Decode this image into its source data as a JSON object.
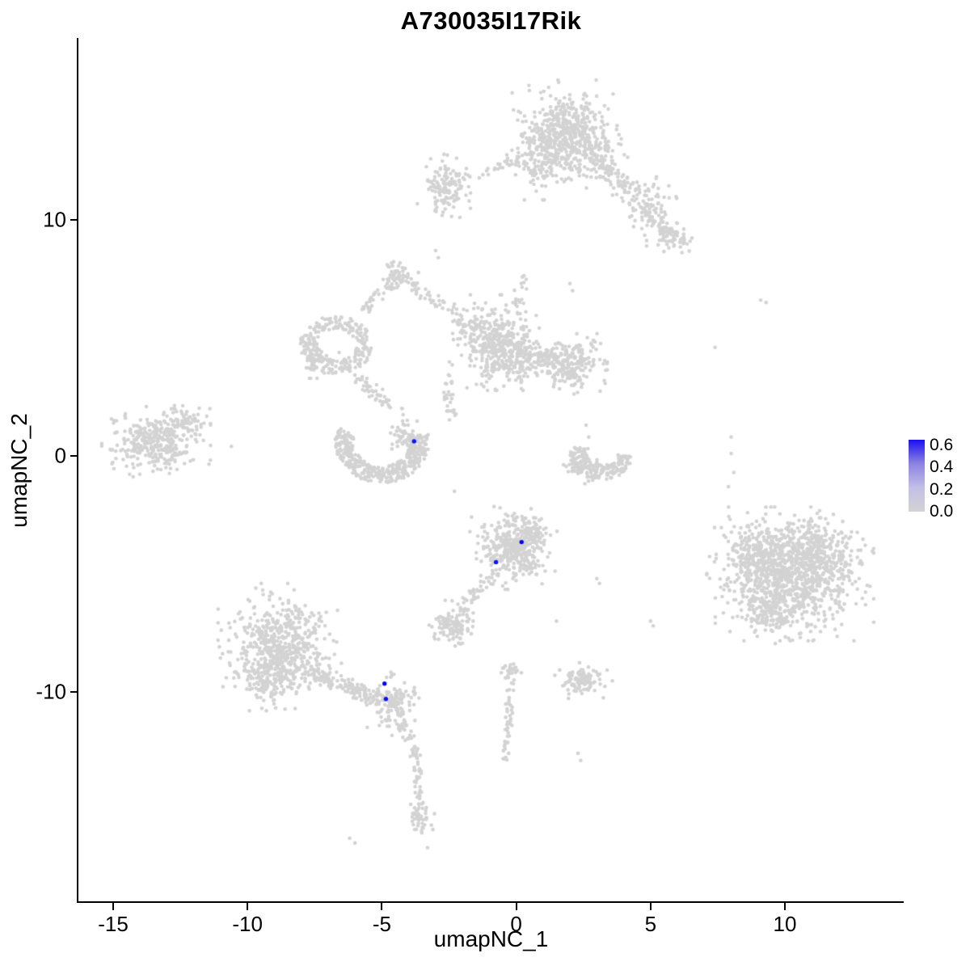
{
  "figure": {
    "title": "A730035I17Rik",
    "xlabel": "umapNC_1",
    "ylabel": "umapNC_2"
  },
  "chart_data": {
    "type": "scatter",
    "title": "A730035I17Rik",
    "xlabel": "umapNC_1",
    "ylabel": "umapNC_2",
    "xlim": [
      -16.3,
      14.4
    ],
    "ylim": [
      -18.9,
      17.7
    ],
    "x_ticks": [
      -15,
      -10,
      -5,
      0,
      5,
      10
    ],
    "y_ticks": [
      -10,
      0,
      10
    ],
    "grid": false,
    "axis_color": "#000000",
    "point_color": "#d3d3d3",
    "highlight_low_color": "#d3d3d3",
    "highlight_high_color": "#0000ff",
    "legend": {
      "position": "right",
      "labels": [
        "0.6",
        "0.4",
        "0.2",
        "0.0"
      ],
      "values": [
        0.6,
        0.4,
        0.2,
        0.0
      ],
      "max": 0.65,
      "gradient_stops": [
        "#1b11ef",
        "#8c83e2",
        "#c3bfe7",
        "#d3d3d3"
      ]
    },
    "clusters": [
      {
        "type": "gauss",
        "cx": 1.8,
        "cy": 13.9,
        "sx": 0.75,
        "sy": 0.75,
        "n": 420
      },
      {
        "type": "gauss",
        "cx": 1.0,
        "cy": 12.6,
        "sx": 0.5,
        "sy": 0.65,
        "n": 170
      },
      {
        "type": "gauss",
        "cx": 2.8,
        "cy": 12.7,
        "sx": 0.5,
        "sy": 0.5,
        "n": 120
      },
      {
        "type": "trail",
        "x1": 2.9,
        "y1": 12.4,
        "x2": 4.3,
        "y2": 11.3,
        "w": 0.3,
        "n": 60
      },
      {
        "type": "gauss",
        "cx": 4.8,
        "cy": 10.7,
        "sx": 0.45,
        "sy": 0.5,
        "n": 90
      },
      {
        "type": "trail",
        "x1": 4.9,
        "y1": 10.2,
        "x2": 5.7,
        "y2": 9.4,
        "w": 0.25,
        "n": 40
      },
      {
        "type": "gauss",
        "cx": 5.8,
        "cy": 9.2,
        "sx": 0.35,
        "sy": 0.35,
        "n": 55
      },
      {
        "type": "gauss",
        "cx": -2.6,
        "cy": 11.3,
        "sx": 0.4,
        "sy": 0.55,
        "n": 130
      },
      {
        "type": "trail",
        "x1": -2.1,
        "y1": 11.7,
        "x2": 0.3,
        "y2": 12.6,
        "w": 0.25,
        "n": 35
      },
      {
        "type": "ring",
        "cx": -6.7,
        "cy": 4.7,
        "rx": 1.05,
        "ry": 0.95,
        "w": 0.3,
        "n": 230
      },
      {
        "type": "gauss",
        "cx": -7.4,
        "cy": 4.1,
        "sx": 0.3,
        "sy": 0.3,
        "n": 40
      },
      {
        "type": "gauss",
        "cx": -4.35,
        "cy": 7.6,
        "sx": 0.3,
        "sy": 0.3,
        "n": 55
      },
      {
        "type": "trail",
        "x1": -5.8,
        "y1": 6.0,
        "x2": -4.6,
        "y2": 7.4,
        "w": 0.2,
        "n": 30
      },
      {
        "type": "trail",
        "x1": -4.1,
        "y1": 7.3,
        "x2": -2.6,
        "y2": 6.3,
        "w": 0.2,
        "n": 30
      },
      {
        "type": "trail",
        "x1": -2.6,
        "y1": 6.3,
        "x2": -1.6,
        "y2": 5.4,
        "w": 0.25,
        "n": 30
      },
      {
        "type": "gauss",
        "cx": -0.8,
        "cy": 4.8,
        "sx": 0.65,
        "sy": 0.75,
        "n": 380
      },
      {
        "type": "gauss",
        "cx": 0.2,
        "cy": 4.2,
        "sx": 0.45,
        "sy": 0.5,
        "n": 120
      },
      {
        "type": "gauss",
        "cx": 2.0,
        "cy": 3.9,
        "sx": 0.55,
        "sy": 0.5,
        "n": 220
      },
      {
        "type": "trail",
        "x1": 0.8,
        "y1": 4.2,
        "x2": 1.5,
        "y2": 4.0,
        "w": 0.3,
        "n": 40
      },
      {
        "type": "trail",
        "x1": -5.9,
        "y1": 3.3,
        "x2": -4.4,
        "y2": 1.9,
        "w": 0.25,
        "n": 50
      },
      {
        "type": "trail",
        "x1": -2.6,
        "y1": 3.4,
        "x2": -2.4,
        "y2": 1.6,
        "w": 0.2,
        "n": 28
      },
      {
        "type": "trail",
        "x1": 0.0,
        "y1": 6.1,
        "x2": 0.3,
        "y2": 7.9,
        "w": 0.25,
        "n": 18
      },
      {
        "type": "arc",
        "cx": -5.0,
        "cy": 0.6,
        "r": 1.4,
        "a0": 160,
        "a1": 370,
        "w": 0.35,
        "n": 380
      },
      {
        "type": "gauss",
        "cx": -4.0,
        "cy": 0.7,
        "sx": 0.3,
        "sy": 0.3,
        "n": 70
      },
      {
        "type": "gauss",
        "cx": -13.4,
        "cy": 0.6,
        "sx": 0.75,
        "sy": 0.55,
        "n": 320
      },
      {
        "type": "gauss",
        "cx": -12.4,
        "cy": 1.4,
        "sx": 0.4,
        "sy": 0.35,
        "n": 60
      },
      {
        "type": "arc",
        "cx": 3.2,
        "cy": 0.2,
        "r": 0.9,
        "a0": 170,
        "a1": 350,
        "w": 0.3,
        "n": 160
      },
      {
        "type": "gauss",
        "cx": 2.5,
        "cy": -0.5,
        "sx": 0.3,
        "sy": 0.3,
        "n": 60
      },
      {
        "type": "gauss",
        "cx": -0.1,
        "cy": -3.9,
        "sx": 0.6,
        "sy": 0.65,
        "n": 360
      },
      {
        "type": "gauss",
        "cx": 0.5,
        "cy": -3.3,
        "sx": 0.35,
        "sy": 0.35,
        "n": 80
      },
      {
        "type": "trail",
        "x1": -0.9,
        "y1": -5.0,
        "x2": -2.1,
        "y2": -6.6,
        "w": 0.25,
        "n": 45
      },
      {
        "type": "gauss",
        "cx": -2.4,
        "cy": -7.2,
        "sx": 0.35,
        "sy": 0.4,
        "n": 110
      },
      {
        "type": "gauss",
        "cx": 10.2,
        "cy": -5.0,
        "sx": 1.15,
        "sy": 1.05,
        "n": 900
      },
      {
        "type": "gauss",
        "cx": 9.0,
        "cy": -4.2,
        "sx": 0.6,
        "sy": 0.7,
        "n": 200
      },
      {
        "type": "gauss",
        "cx": 11.3,
        "cy": -4.1,
        "sx": 0.6,
        "sy": 0.6,
        "n": 180
      },
      {
        "type": "gauss",
        "cx": 9.6,
        "cy": -6.6,
        "sx": 0.7,
        "sy": 0.5,
        "n": 150
      },
      {
        "type": "gauss",
        "cx": -8.8,
        "cy": -8.1,
        "sx": 0.85,
        "sy": 1.0,
        "n": 550
      },
      {
        "type": "gauss",
        "cx": -9.3,
        "cy": -9.4,
        "sx": 0.5,
        "sy": 0.5,
        "n": 120
      },
      {
        "type": "trail",
        "x1": -7.6,
        "y1": -9.2,
        "x2": -5.3,
        "y2": -10.2,
        "w": 0.3,
        "n": 130
      },
      {
        "type": "gauss",
        "cx": -4.6,
        "cy": -10.5,
        "sx": 0.4,
        "sy": 0.5,
        "n": 140
      },
      {
        "type": "trail",
        "x1": -4.3,
        "y1": -11.3,
        "x2": -3.7,
        "y2": -12.8,
        "w": 0.2,
        "n": 35
      },
      {
        "type": "trail",
        "x1": -3.7,
        "y1": -13.0,
        "x2": -3.6,
        "y2": -14.8,
        "w": 0.15,
        "n": 30
      },
      {
        "type": "gauss",
        "cx": -3.6,
        "cy": -15.3,
        "sx": 0.25,
        "sy": 0.3,
        "n": 45
      },
      {
        "type": "gauss",
        "cx": 2.5,
        "cy": -9.5,
        "sx": 0.4,
        "sy": 0.3,
        "n": 110
      },
      {
        "type": "trail",
        "x1": -0.2,
        "y1": -9.4,
        "x2": -0.4,
        "y2": -13.0,
        "w": 0.15,
        "n": 45
      },
      {
        "type": "gauss",
        "cx": -0.2,
        "cy": -9.1,
        "sx": 0.2,
        "sy": 0.2,
        "n": 25
      }
    ],
    "sparse_points": [
      [
        -3.0,
        8.7
      ],
      [
        -2.9,
        8.4
      ],
      [
        9.1,
        6.6
      ],
      [
        9.3,
        6.5
      ],
      [
        7.4,
        4.6
      ],
      [
        8.0,
        0.8
      ],
      [
        8.0,
        0.1
      ],
      [
        8.1,
        -0.7
      ],
      [
        7.9,
        -1.3
      ],
      [
        5.0,
        -7.0
      ],
      [
        5.1,
        -7.2
      ],
      [
        3.0,
        -5.2
      ],
      [
        3.1,
        -5.4
      ],
      [
        2.3,
        -12.6
      ],
      [
        2.4,
        -12.9
      ],
      [
        -6.2,
        -16.2
      ],
      [
        -6.0,
        -16.4
      ],
      [
        -11.4,
        2.0
      ],
      [
        -10.6,
        0.4
      ],
      [
        2.6,
        1.3
      ],
      [
        2.7,
        0.8
      ],
      [
        -2.3,
        -1.5
      ],
      [
        -0.6,
        -2.2
      ],
      [
        1.5,
        -7.0
      ],
      [
        -3.3,
        -16.6
      ],
      [
        2.0,
        7.3
      ],
      [
        2.1,
        7.0
      ]
    ],
    "expressing_cells": [
      {
        "x": -3.8,
        "y": 0.62,
        "value": 0.6
      },
      {
        "x": 0.2,
        "y": -3.65,
        "value": 0.65
      },
      {
        "x": -0.75,
        "y": -4.5,
        "value": 0.6
      },
      {
        "x": -4.9,
        "y": -9.65,
        "value": 0.65
      },
      {
        "x": -4.85,
        "y": -10.3,
        "value": 0.6
      }
    ]
  }
}
